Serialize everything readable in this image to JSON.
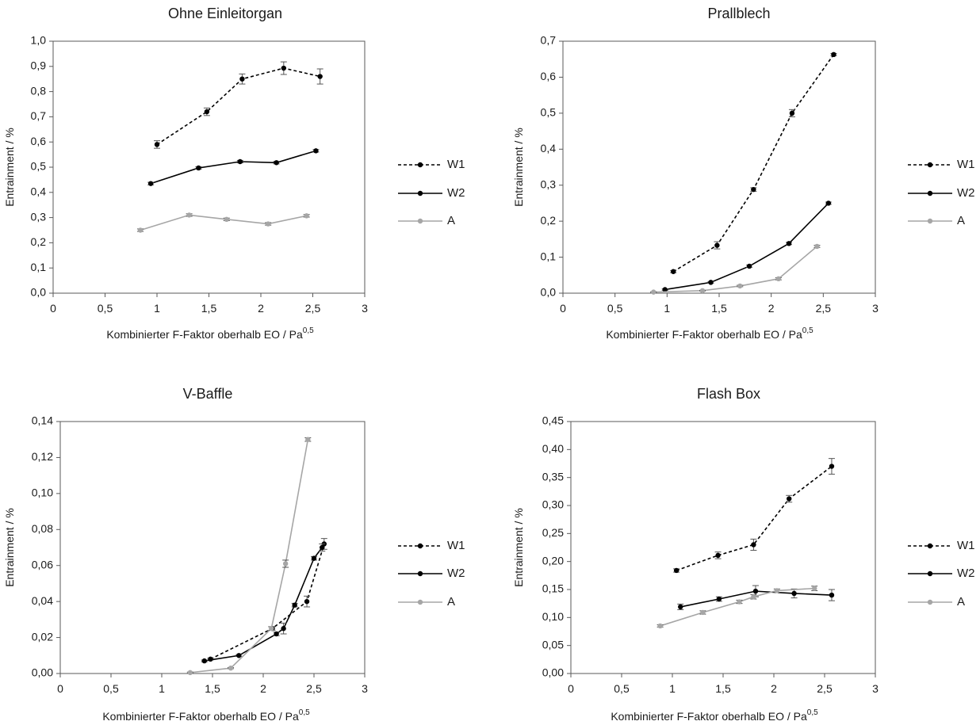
{
  "chart_data": [
    {
      "type": "line",
      "title": "Ohne Einleitorgan",
      "xlabel": "Kombinierter F-Faktor oberhalb EO / Pa",
      "xlabel_sup": "0,5",
      "ylabel": "Entrainment / %",
      "xlim": [
        0,
        3
      ],
      "ylim": [
        0,
        1.0
      ],
      "xticks": [
        0,
        0.5,
        1,
        1.5,
        2,
        2.5,
        3
      ],
      "xtick_labels": [
        "0",
        "0,5",
        "1",
        "1,5",
        "2",
        "2,5",
        "3"
      ],
      "yticks": [
        0,
        0.1,
        0.2,
        0.3,
        0.4,
        0.5,
        0.6,
        0.7,
        0.8,
        0.9,
        1.0
      ],
      "ytick_labels": [
        "0,0",
        "0,1",
        "0,2",
        "0,3",
        "0,4",
        "0,5",
        "0,6",
        "0,7",
        "0,8",
        "0,9",
        "1,0"
      ],
      "grid": false,
      "legend_position": "right",
      "series": [
        {
          "name": "W1",
          "color": "#000000",
          "style": "dashed",
          "points": [
            [
              1.0,
              0.59,
              0.015
            ],
            [
              1.48,
              0.72,
              0.015
            ],
            [
              1.82,
              0.85,
              0.02
            ],
            [
              2.22,
              0.893,
              0.025
            ],
            [
              2.57,
              0.86,
              0.03
            ]
          ]
        },
        {
          "name": "W2",
          "color": "#000000",
          "style": "solid",
          "points": [
            [
              0.94,
              0.435,
              0.005
            ],
            [
              1.4,
              0.497,
              0.005
            ],
            [
              1.8,
              0.522,
              0.005
            ],
            [
              2.15,
              0.518,
              0.005
            ],
            [
              2.53,
              0.565,
              0.005
            ]
          ]
        },
        {
          "name": "A",
          "color": "#a6a6a6",
          "style": "solid",
          "points": [
            [
              0.84,
              0.25,
              0.005
            ],
            [
              1.31,
              0.31,
              0.005
            ],
            [
              1.67,
              0.293,
              0.005
            ],
            [
              2.07,
              0.275,
              0.005
            ],
            [
              2.44,
              0.307,
              0.005
            ]
          ]
        }
      ]
    },
    {
      "type": "line",
      "title": "Prallblech",
      "xlabel": "Kombinierter F-Faktor oberhalb EO / Pa",
      "xlabel_sup": "0,5",
      "ylabel": "Entrainment / %",
      "xlim": [
        0,
        3
      ],
      "ylim": [
        0,
        0.7
      ],
      "xticks": [
        0,
        0.5,
        1,
        1.5,
        2,
        2.5,
        3
      ],
      "xtick_labels": [
        "0",
        "0,5",
        "1",
        "1,5",
        "2",
        "2,5",
        "3"
      ],
      "yticks": [
        0,
        0.1,
        0.2,
        0.3,
        0.4,
        0.5,
        0.6,
        0.7
      ],
      "ytick_labels": [
        "0,0",
        "0,1",
        "0,2",
        "0,3",
        "0,4",
        "0,5",
        "0,6",
        "0,7"
      ],
      "grid": false,
      "legend_position": "right",
      "series": [
        {
          "name": "W1",
          "color": "#000000",
          "style": "dashed",
          "points": [
            [
              1.06,
              0.06,
              0.003
            ],
            [
              1.48,
              0.133,
              0.01
            ],
            [
              1.83,
              0.288,
              0.005
            ],
            [
              2.2,
              0.5,
              0.01
            ],
            [
              2.6,
              0.663,
              0.003
            ]
          ]
        },
        {
          "name": "W2",
          "color": "#000000",
          "style": "solid",
          "points": [
            [
              0.98,
              0.01,
              0.002
            ],
            [
              1.42,
              0.03,
              0.002
            ],
            [
              1.79,
              0.075,
              0.003
            ],
            [
              2.17,
              0.138,
              0.003
            ],
            [
              2.55,
              0.25,
              0.003
            ]
          ]
        },
        {
          "name": "A",
          "color": "#a6a6a6",
          "style": "solid",
          "points": [
            [
              0.87,
              0.003,
              0.001
            ],
            [
              1.34,
              0.007,
              0.001
            ],
            [
              1.7,
              0.02,
              0.002
            ],
            [
              2.07,
              0.04,
              0.003
            ],
            [
              2.44,
              0.13,
              0.003
            ]
          ]
        }
      ]
    },
    {
      "type": "line",
      "title": "V-Baffle",
      "xlabel": "Kombinierter F-Faktor oberhalb EO / Pa",
      "xlabel_sup": "0,5",
      "ylabel": "Entrainment / %",
      "xlim": [
        0,
        3
      ],
      "ylim": [
        0,
        0.14
      ],
      "xticks": [
        0,
        0.5,
        1,
        1.5,
        2,
        2.5,
        3
      ],
      "xtick_labels": [
        "0",
        "0,5",
        "1",
        "1,5",
        "2",
        "2,5",
        "3"
      ],
      "yticks": [
        0,
        0.02,
        0.04,
        0.06,
        0.08,
        0.1,
        0.12,
        0.14
      ],
      "ytick_labels": [
        "0,00",
        "0,02",
        "0,04",
        "0,06",
        "0,08",
        "0,10",
        "0,12",
        "0,14"
      ],
      "grid": false,
      "legend_position": "right",
      "series": [
        {
          "name": "W1",
          "color": "#000000",
          "style": "dashed",
          "points": [
            [
              1.48,
              0.008,
              0.0005
            ],
            [
              2.09,
              0.025,
              0.001
            ],
            [
              2.43,
              0.04,
              0.003
            ],
            [
              2.6,
              0.072,
              0.003
            ]
          ]
        },
        {
          "name": "W2",
          "color": "#000000",
          "style": "solid",
          "points": [
            [
              1.42,
              0.007,
              0.0005
            ],
            [
              1.76,
              0.01,
              0.0005
            ],
            [
              2.13,
              0.022,
              0.001
            ],
            [
              2.2,
              0.025,
              0.003
            ],
            [
              2.31,
              0.038,
              0.001
            ],
            [
              2.5,
              0.064,
              0.001
            ],
            [
              2.58,
              0.07,
              0.002
            ]
          ]
        },
        {
          "name": "A",
          "color": "#a6a6a6",
          "style": "solid",
          "points": [
            [
              1.28,
              0.0005,
              0.0003
            ],
            [
              1.68,
              0.003,
              0.0003
            ],
            [
              2.08,
              0.025,
              0.001
            ],
            [
              2.22,
              0.061,
              0.002
            ],
            [
              2.44,
              0.13,
              0.001
            ]
          ]
        }
      ]
    },
    {
      "type": "line",
      "title": "Flash Box",
      "xlabel": "Kombinierter F-Faktor oberhalb EO / Pa",
      "xlabel_sup": "0,5",
      "ylabel": "Entrainment / %",
      "xlim": [
        0,
        3
      ],
      "ylim": [
        0,
        0.45
      ],
      "xticks": [
        0,
        0.5,
        1,
        1.5,
        2,
        2.5,
        3
      ],
      "xtick_labels": [
        "0",
        "0,5",
        "1",
        "1,5",
        "2",
        "2,5",
        "3"
      ],
      "yticks": [
        0,
        0.05,
        0.1,
        0.15,
        0.2,
        0.25,
        0.3,
        0.35,
        0.4,
        0.45
      ],
      "ytick_labels": [
        "0,00",
        "0,05",
        "0,10",
        "0,15",
        "0,20",
        "0,25",
        "0,30",
        "0,35",
        "0,40",
        "0,45"
      ],
      "grid": false,
      "legend_position": "right",
      "series": [
        {
          "name": "W1",
          "color": "#000000",
          "style": "dashed",
          "points": [
            [
              1.04,
              0.184,
              0.003
            ],
            [
              1.45,
              0.211,
              0.006
            ],
            [
              1.8,
              0.23,
              0.01
            ],
            [
              2.15,
              0.312,
              0.006
            ],
            [
              2.57,
              0.37,
              0.014
            ]
          ]
        },
        {
          "name": "W2",
          "color": "#000000",
          "style": "solid",
          "points": [
            [
              1.08,
              0.119,
              0.005
            ],
            [
              1.46,
              0.133,
              0.004
            ],
            [
              1.82,
              0.147,
              0.01
            ],
            [
              2.2,
              0.143,
              0.008
            ],
            [
              2.57,
              0.14,
              0.01
            ]
          ]
        },
        {
          "name": "A",
          "color": "#a6a6a6",
          "style": "solid",
          "points": [
            [
              0.88,
              0.085,
              0.002
            ],
            [
              1.3,
              0.109,
              0.003
            ],
            [
              1.66,
              0.128,
              0.003
            ],
            [
              1.8,
              0.137,
              0.004
            ],
            [
              2.03,
              0.148,
              0.003
            ],
            [
              2.4,
              0.152,
              0.004
            ]
          ]
        }
      ]
    }
  ]
}
